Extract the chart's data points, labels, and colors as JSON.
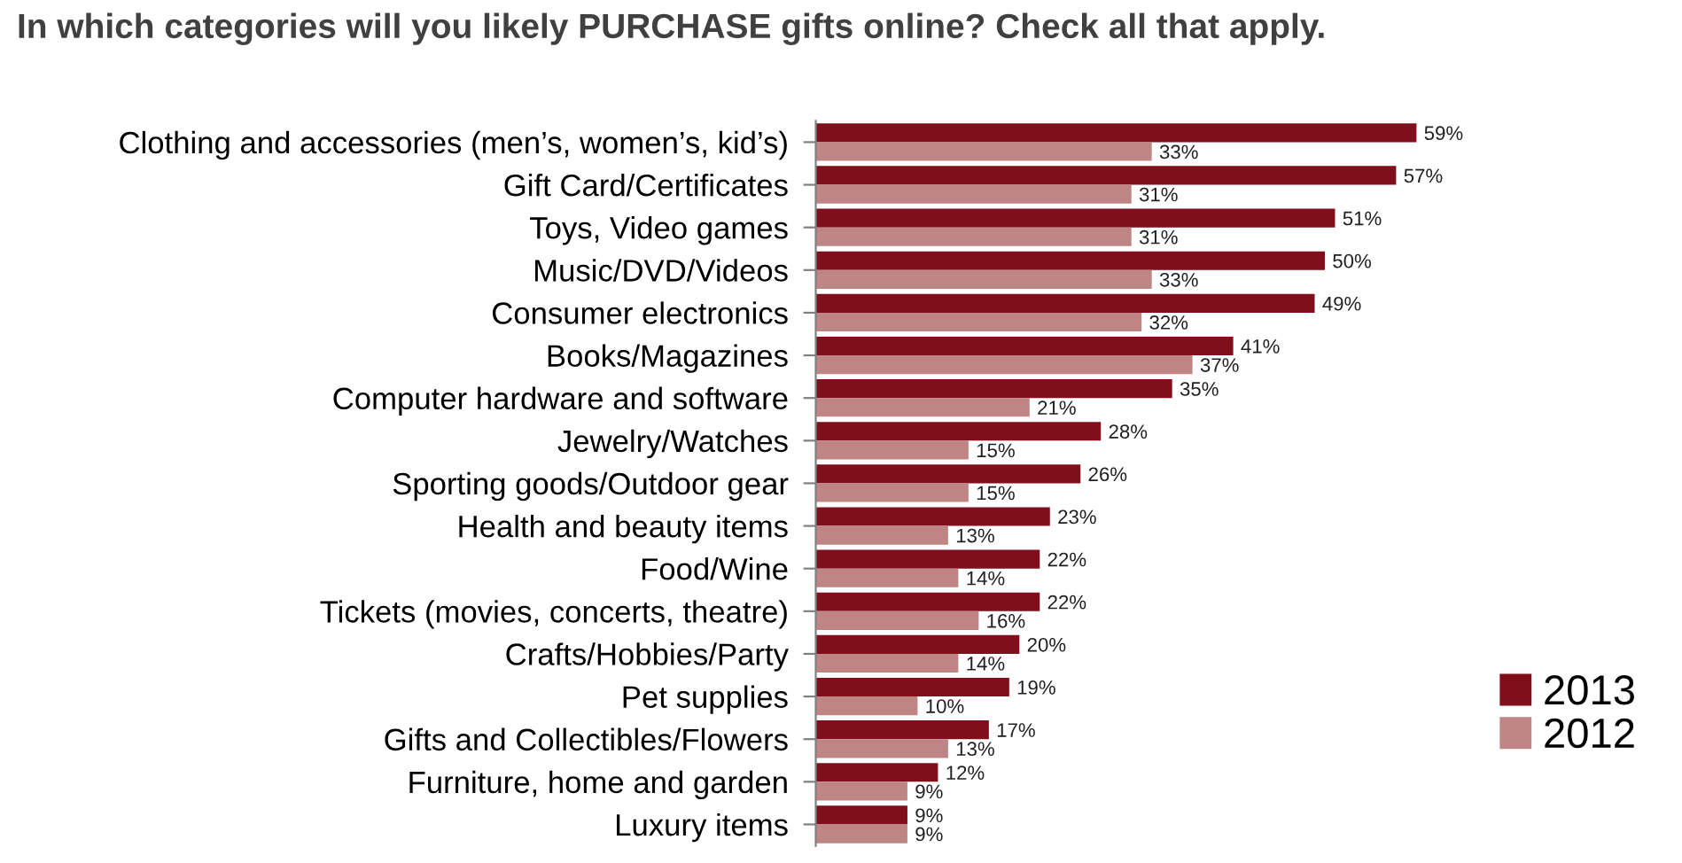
{
  "chart_data": {
    "type": "bar",
    "orientation": "horizontal",
    "title": "In which categories will you likely PURCHASE gifts online? Check all that apply.",
    "categories": [
      "Clothing and accessories (men’s, women’s, kid’s)",
      "Gift Card/Certificates",
      "Toys, Video games",
      "Music/DVD/Videos",
      "Consumer electronics",
      "Books/Magazines",
      "Computer hardware and software",
      "Jewelry/Watches",
      "Sporting goods/Outdoor gear",
      "Health and beauty items",
      "Food/Wine",
      "Tickets (movies, concerts, theatre)",
      "Crafts/Hobbies/Party",
      "Pet supplies",
      "Gifts and Collectibles/Flowers",
      "Furniture, home and garden",
      "Luxury items"
    ],
    "series": [
      {
        "name": "2013",
        "color": "#7f0f1a",
        "values": [
          59,
          57,
          51,
          50,
          49,
          41,
          35,
          28,
          26,
          23,
          22,
          22,
          20,
          19,
          17,
          12,
          9
        ],
        "value_labels": [
          "59%",
          "57%",
          "51%",
          "50%",
          "49%",
          "41%",
          "35%",
          "28%",
          "26%",
          "23%",
          "22%",
          "22%",
          "20%",
          "19%",
          "17%",
          "12%",
          "9%"
        ]
      },
      {
        "name": "2012",
        "color": "#bf8585",
        "values": [
          33,
          31,
          31,
          33,
          32,
          37,
          21,
          15,
          15,
          13,
          14,
          16,
          14,
          10,
          13,
          9,
          9
        ],
        "value_labels": [
          "33%",
          "31%",
          "31%",
          "33%",
          "32%",
          "37%",
          "21%",
          "15%",
          "15%",
          "13%",
          "14%",
          "16%",
          "14%",
          "10%",
          "13%",
          "9%",
          "9%"
        ]
      }
    ],
    "legend": "bottom right",
    "grid": false
  }
}
